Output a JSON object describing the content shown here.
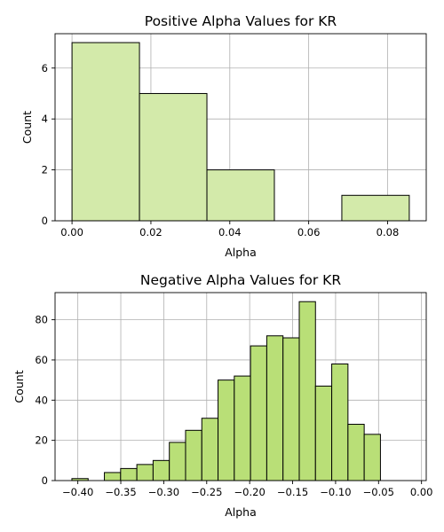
{
  "chart_data": [
    {
      "type": "bar",
      "title": "Positive Alpha Values for KR",
      "xlabel": "Alpha",
      "ylabel": "Count",
      "color": "#d3eaaa",
      "xlim": [
        -0.0043,
        0.0898
      ],
      "ylim": [
        0,
        7.35
      ],
      "xticks": [
        0.0,
        0.02,
        0.04,
        0.06,
        0.08
      ],
      "xtick_labels": [
        "0.00",
        "0.02",
        "0.04",
        "0.06",
        "0.08"
      ],
      "yticks": [
        0,
        2,
        4,
        6
      ],
      "ytick_labels": [
        "0",
        "2",
        "4",
        "6"
      ],
      "grid": true,
      "bins": [
        {
          "x0": 0.0,
          "x1": 0.0171,
          "count": 7
        },
        {
          "x0": 0.0171,
          "x1": 0.0342,
          "count": 5
        },
        {
          "x0": 0.0342,
          "x1": 0.0513,
          "count": 2
        },
        {
          "x0": 0.0513,
          "x1": 0.0684,
          "count": 0
        },
        {
          "x0": 0.0684,
          "x1": 0.0855,
          "count": 1
        }
      ]
    },
    {
      "type": "bar",
      "title": "Negative Alpha Values for KR",
      "xlabel": "Alpha",
      "ylabel": "Count",
      "color": "#b9df77",
      "xlim": [
        -0.4265,
        0.0055
      ],
      "ylim": [
        0,
        93.5
      ],
      "xticks": [
        -0.4,
        -0.35,
        -0.3,
        -0.25,
        -0.2,
        -0.15,
        -0.1,
        -0.05,
        0.0
      ],
      "xtick_labels": [
        "−0.40",
        "−0.35",
        "−0.30",
        "−0.25",
        "−0.20",
        "−0.15",
        "−0.10",
        "−0.05",
        "0.00"
      ],
      "yticks": [
        0,
        20,
        40,
        60,
        80
      ],
      "ytick_labels": [
        "0",
        "20",
        "40",
        "60",
        "80"
      ],
      "grid": true,
      "bins": [
        {
          "x0": -0.4069,
          "x1": -0.388,
          "count": 1
        },
        {
          "x0": -0.388,
          "x1": -0.3691,
          "count": 0
        },
        {
          "x0": -0.3691,
          "x1": -0.3502,
          "count": 4
        },
        {
          "x0": -0.3502,
          "x1": -0.3313,
          "count": 6
        },
        {
          "x0": -0.3313,
          "x1": -0.3124,
          "count": 8
        },
        {
          "x0": -0.3124,
          "x1": -0.2935,
          "count": 10
        },
        {
          "x0": -0.2935,
          "x1": -0.2746,
          "count": 19
        },
        {
          "x0": -0.2746,
          "x1": -0.2557,
          "count": 25
        },
        {
          "x0": -0.2557,
          "x1": -0.2368,
          "count": 31
        },
        {
          "x0": -0.2368,
          "x1": -0.2179,
          "count": 50
        },
        {
          "x0": -0.2179,
          "x1": -0.199,
          "count": 52
        },
        {
          "x0": -0.199,
          "x1": -0.1801,
          "count": 67
        },
        {
          "x0": -0.1801,
          "x1": -0.1612,
          "count": 72
        },
        {
          "x0": -0.1612,
          "x1": -0.1423,
          "count": 71
        },
        {
          "x0": -0.1423,
          "x1": -0.1234,
          "count": 89
        },
        {
          "x0": -0.1234,
          "x1": -0.1045,
          "count": 47
        },
        {
          "x0": -0.1045,
          "x1": -0.0856,
          "count": 58
        },
        {
          "x0": -0.0856,
          "x1": -0.0667,
          "count": 28
        },
        {
          "x0": -0.0667,
          "x1": -0.0478,
          "count": 23
        }
      ]
    }
  ]
}
